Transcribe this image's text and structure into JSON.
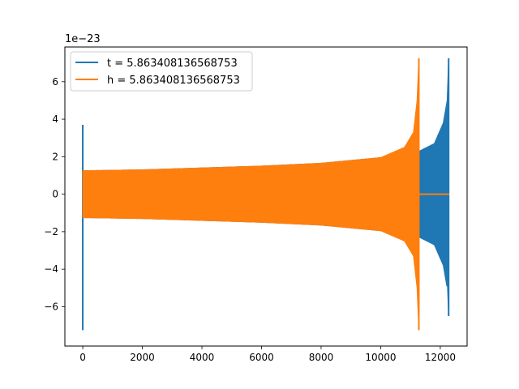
{
  "chart_data": {
    "type": "line",
    "title": "",
    "xlabel": "",
    "ylabel": "",
    "offset_text": "1e−23",
    "xlim": [
      -600,
      12900
    ],
    "ylim": [
      -8.1,
      7.85
    ],
    "xticks": [
      0,
      2000,
      4000,
      6000,
      8000,
      10000,
      12000
    ],
    "xtick_labels": [
      "0",
      "2000",
      "4000",
      "6000",
      "8000",
      "10000",
      "12000"
    ],
    "yticks": [
      -6,
      -4,
      -2,
      0,
      2,
      4,
      6
    ],
    "ytick_labels": [
      "−6",
      "−4",
      "−2",
      "0",
      "2",
      "4",
      "6"
    ],
    "grid": false,
    "legend_position": "upper-left",
    "series": [
      {
        "name": "t = 5.863408136568753",
        "color": "#1f77b4",
        "description_points": {
          "start_spike": {
            "x": 0,
            "ymin": -7.25,
            "ymax": 3.7
          },
          "envelope": [
            [
              0,
              1.25
            ],
            [
              2000,
              1.3
            ],
            [
              4000,
              1.4
            ],
            [
              6000,
              1.5
            ],
            [
              8000,
              1.65
            ],
            [
              10000,
              1.95
            ],
            [
              11100,
              2.3
            ],
            [
              11300,
              2.3
            ],
            [
              11800,
              2.7
            ],
            [
              12100,
              3.8
            ],
            [
              12230,
              5.0
            ],
            [
              12280,
              7.25
            ]
          ],
          "end_min": -6.5
        }
      },
      {
        "name": "h = 5.863408136568753",
        "color": "#ff7f0e",
        "description_points": {
          "envelope": [
            [
              0,
              1.25
            ],
            [
              2000,
              1.3
            ],
            [
              4000,
              1.4
            ],
            [
              6000,
              1.5
            ],
            [
              8000,
              1.65
            ],
            [
              10000,
              1.95
            ],
            [
              10800,
              2.5
            ],
            [
              11100,
              3.3
            ],
            [
              11220,
              5.0
            ],
            [
              11280,
              7.25
            ]
          ],
          "end_min": -7.25,
          "flat_after": [
            11300,
            12300
          ]
        }
      }
    ]
  }
}
